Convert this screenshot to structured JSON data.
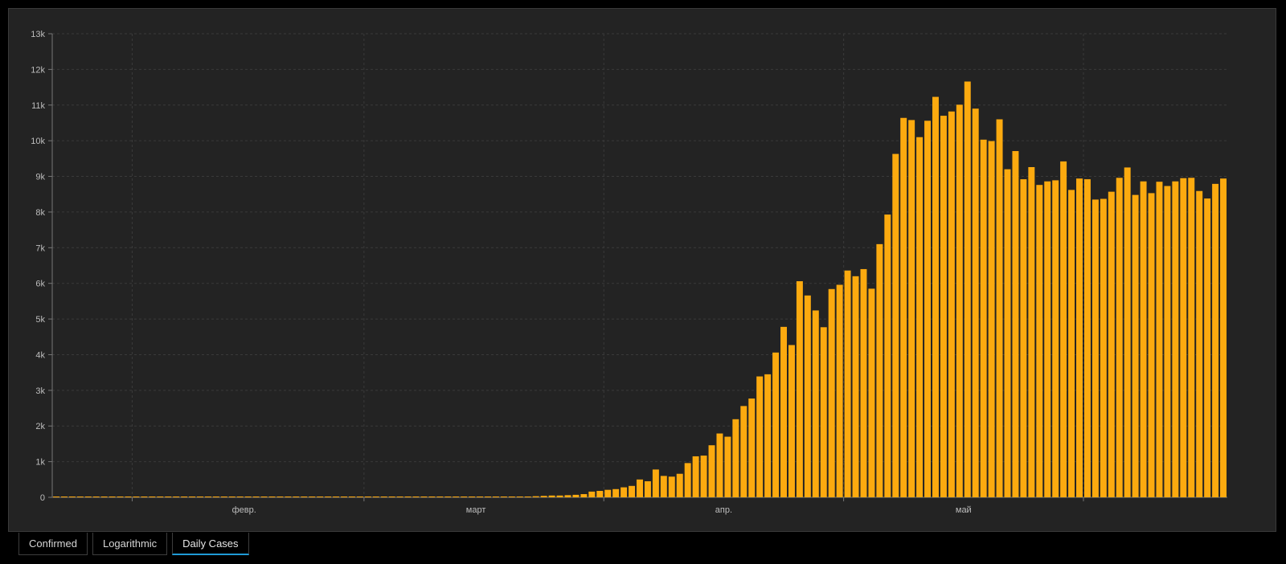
{
  "tabs": [
    {
      "label": "Confirmed",
      "active": false
    },
    {
      "label": "Logarithmic",
      "active": false
    },
    {
      "label": "Daily Cases",
      "active": true
    }
  ],
  "colors": {
    "bar": "#FCAA0F",
    "background": "#232323",
    "grid": "#3a3a3a",
    "axis_text": "#bdbdbd"
  },
  "chart_data": {
    "type": "bar",
    "title": "",
    "xlabel": "",
    "ylabel": "",
    "ylim": [
      0,
      13000
    ],
    "y_ticks": [
      "0",
      "1k",
      "2k",
      "3k",
      "4k",
      "5k",
      "6k",
      "7k",
      "8k",
      "9k",
      "10k",
      "11k",
      "12k",
      "13k"
    ],
    "x_month_labels": [
      {
        "label": "февр.",
        "date": "2020-02-15"
      },
      {
        "label": "март",
        "date": "2020-03-15"
      },
      {
        "label": "апр.",
        "date": "2020-04-15"
      },
      {
        "label": "май",
        "date": "2020-05-15"
      }
    ],
    "x_grid_dates": [
      "2020-02-01",
      "2020-03-01",
      "2020-03-31",
      "2020-04-30",
      "2020-05-30"
    ],
    "x_start_date": "2020-01-22",
    "grid": true,
    "series": [
      {
        "values": [
          0,
          0,
          0,
          0,
          0,
          0,
          0,
          0,
          0,
          0,
          0,
          0,
          0,
          0,
          0,
          0,
          0,
          0,
          0,
          0,
          0,
          0,
          0,
          0,
          0,
          0,
          0,
          0,
          0,
          0,
          0,
          0,
          0,
          0,
          0,
          0,
          0,
          0,
          0,
          0,
          0,
          0,
          0,
          0,
          0,
          0,
          0,
          0,
          0,
          0,
          0,
          0,
          0,
          0,
          10,
          0,
          10,
          10,
          20,
          20,
          30,
          40,
          50,
          50,
          60,
          70,
          90,
          160,
          180,
          210,
          230,
          280,
          320,
          500,
          450,
          780,
          600,
          580,
          660,
          960,
          1150,
          1170,
          1460,
          1790,
          1700,
          2190,
          2560,
          2770,
          3390,
          3450,
          4060,
          4780,
          4270,
          6060,
          5660,
          5240,
          4770,
          5840,
          5960,
          6360,
          6200,
          6400,
          5850,
          7100,
          7930,
          9630,
          10640,
          10580,
          10100,
          10560,
          11230,
          10700,
          10820,
          11010,
          11660,
          10900,
          10030,
          9990,
          10600,
          9200,
          9710,
          8920,
          9260,
          8760,
          8860,
          8890,
          9420,
          8620,
          8940,
          8920,
          8350,
          8370,
          8570,
          8960,
          9250,
          8480,
          8860,
          8530,
          8850,
          8730,
          8860,
          8950,
          8960,
          8590,
          8380,
          8790,
          8940
        ]
      }
    ]
  }
}
